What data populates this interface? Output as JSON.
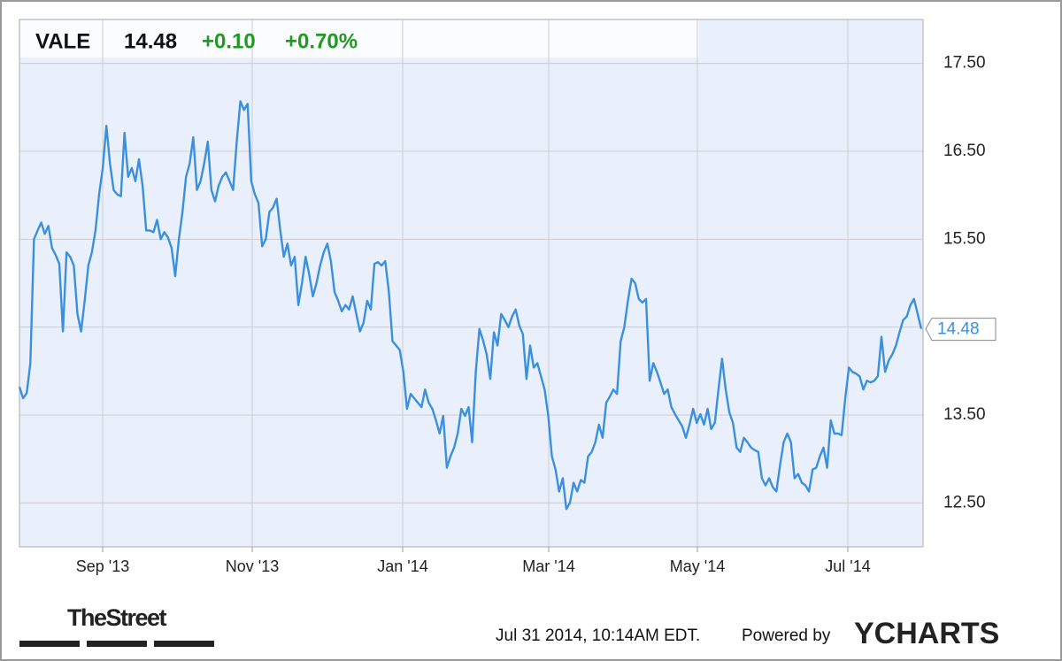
{
  "chart_data": {
    "type": "line",
    "ticker": "VALE",
    "price": "14.48",
    "change": "+0.10",
    "change_pct": "+0.70%",
    "xtick_labels": [
      "Sep '13",
      "Nov '13",
      "Jan '14",
      "Mar '14",
      "May '14",
      "Jul '14"
    ],
    "series": [
      {
        "name": "VALE",
        "color": "#3a8fdf",
        "values": [
          13.82,
          13.69,
          13.75,
          14.09,
          15.5,
          15.6,
          15.69,
          15.56,
          15.65,
          15.4,
          15.32,
          15.22,
          14.45,
          15.35,
          15.3,
          15.2,
          14.65,
          14.45,
          14.8,
          15.2,
          15.35,
          15.6,
          16.01,
          16.31,
          16.79,
          16.36,
          16.06,
          16.01,
          15.99,
          16.71,
          16.21,
          16.31,
          16.16,
          16.41,
          16.11,
          15.6,
          15.6,
          15.58,
          15.72,
          15.5,
          15.58,
          15.52,
          15.4,
          15.08,
          15.5,
          15.81,
          16.21,
          16.36,
          16.66,
          16.06,
          16.16,
          16.36,
          16.61,
          16.06,
          15.93,
          16.11,
          16.21,
          16.26,
          16.16,
          16.06,
          16.61,
          17.07,
          16.97,
          17.04,
          16.16,
          16.01,
          15.91,
          15.42,
          15.5,
          15.81,
          15.86,
          15.96,
          15.6,
          15.3,
          15.45,
          15.2,
          15.3,
          14.75,
          15.0,
          15.3,
          15.1,
          14.85,
          15.0,
          15.2,
          15.35,
          15.45,
          15.25,
          14.9,
          14.8,
          14.68,
          14.75,
          14.7,
          14.85,
          14.65,
          14.45,
          14.55,
          14.8,
          14.7,
          15.22,
          15.24,
          15.2,
          15.25,
          14.9,
          14.34,
          14.29,
          14.24,
          13.99,
          13.57,
          13.74,
          13.69,
          13.64,
          13.59,
          13.79,
          13.64,
          13.57,
          13.44,
          13.29,
          13.49,
          12.9,
          13.03,
          13.13,
          13.29,
          13.57,
          13.49,
          13.59,
          13.19,
          13.99,
          14.48,
          14.35,
          14.19,
          13.91,
          14.44,
          14.29,
          14.65,
          14.58,
          14.5,
          14.62,
          14.7,
          14.52,
          14.42,
          13.91,
          14.29,
          14.04,
          14.09,
          13.94,
          13.79,
          13.49,
          13.03,
          12.88,
          12.63,
          12.78,
          12.43,
          12.5,
          12.73,
          12.63,
          12.76,
          12.73,
          13.03,
          13.08,
          13.19,
          13.39,
          13.24,
          13.64,
          13.71,
          13.79,
          13.74,
          14.34,
          14.5,
          14.8,
          15.05,
          15.0,
          14.82,
          14.78,
          14.82,
          13.89,
          14.09,
          13.99,
          13.87,
          13.74,
          13.79,
          13.59,
          13.51,
          13.44,
          13.37,
          13.24,
          13.39,
          13.57,
          13.41,
          13.51,
          13.39,
          13.57,
          13.34,
          13.41,
          13.79,
          14.14,
          13.79,
          13.53,
          13.41,
          13.13,
          13.08,
          13.24,
          13.19,
          13.13,
          13.1,
          13.08,
          12.78,
          12.7,
          12.78,
          12.68,
          12.63,
          12.93,
          13.19,
          13.29,
          13.19,
          12.78,
          12.83,
          12.73,
          12.7,
          12.63,
          12.88,
          12.9,
          13.03,
          13.13,
          12.9,
          13.44,
          13.29,
          13.29,
          13.27,
          13.69,
          14.04,
          13.99,
          13.97,
          13.94,
          13.79,
          13.89,
          13.87,
          13.89,
          13.94,
          14.39,
          13.99,
          14.12,
          14.19,
          14.29,
          14.44,
          14.58,
          14.62,
          14.75,
          14.82,
          14.65,
          14.48
        ]
      }
    ],
    "ylim": [
      12,
      18
    ],
    "yticks": [
      {
        "value": 12.5,
        "label": "12.50"
      },
      {
        "value": 13.5,
        "label": "13.50"
      },
      {
        "value": 14.5,
        "label": null
      },
      {
        "value": 15.5,
        "label": "15.50"
      },
      {
        "value": 16.5,
        "label": "16.50"
      },
      {
        "value": 17.5,
        "label": "17.50"
      }
    ],
    "grid": true
  },
  "footer": {
    "brand": "TheStreet",
    "timestamp": "Jul 31 2014, 10:14AM EDT.",
    "powered_by": "Powered by",
    "provider": "YCHARTS"
  }
}
